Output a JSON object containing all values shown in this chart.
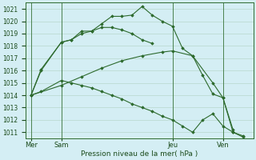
{
  "bg_color": "#d4eef4",
  "grid_color": "#b8d8cc",
  "line_color": "#2d6a2d",
  "marker_color": "#2d6a2d",
  "xlabel": "Pression niveau de la mer( hPa )",
  "ylim": [
    1010.5,
    1021.5
  ],
  "yticks": [
    1011,
    1012,
    1013,
    1014,
    1015,
    1016,
    1017,
    1018,
    1019,
    1020,
    1021
  ],
  "x_tick_labels": [
    "Mer",
    "Sam",
    "Jeu",
    "Ven"
  ],
  "x_tick_positions": [
    0,
    3,
    14,
    19
  ],
  "x_vlines": [
    0,
    3,
    14,
    19
  ],
  "xlim": [
    -0.5,
    22
  ],
  "series": [
    {
      "x": [
        0,
        1,
        3,
        4,
        5,
        6,
        7,
        8,
        9,
        10,
        11,
        12,
        13,
        14,
        15,
        16,
        17,
        18,
        19,
        20
      ],
      "y": [
        1014.0,
        1016.1,
        1018.3,
        1018.5,
        1019.2,
        1019.2,
        1019.8,
        1020.4,
        1020.4,
        1020.5,
        1021.2,
        1020.5,
        1020.0,
        1019.6,
        1017.8,
        1017.2,
        1015.6,
        1014.1,
        1013.8,
        1011.2
      ]
    },
    {
      "x": [
        0,
        3,
        5,
        7,
        9,
        11,
        13,
        14,
        16,
        18,
        19,
        20,
        21
      ],
      "y": [
        1014.0,
        1014.8,
        1015.5,
        1016.2,
        1016.8,
        1017.2,
        1017.5,
        1017.6,
        1017.2,
        1015.0,
        1013.8,
        1011.0,
        1010.6
      ]
    },
    {
      "x": [
        0,
        1,
        3,
        4,
        5,
        6,
        7,
        8,
        9,
        10,
        11,
        12
      ],
      "y": [
        1014.0,
        1016.0,
        1018.3,
        1018.5,
        1019.0,
        1019.2,
        1019.5,
        1019.5,
        1019.3,
        1019.0,
        1018.5,
        1018.2
      ]
    },
    {
      "x": [
        0,
        1,
        3,
        4,
        5,
        6,
        7,
        8,
        9,
        10,
        11,
        12,
        13,
        14,
        15,
        16,
        17,
        18,
        19,
        20,
        21
      ],
      "y": [
        1014.0,
        1014.3,
        1015.2,
        1015.0,
        1014.8,
        1014.6,
        1014.3,
        1014.0,
        1013.7,
        1013.3,
        1013.0,
        1012.7,
        1012.3,
        1012.0,
        1011.5,
        1011.0,
        1012.0,
        1012.5,
        1011.5,
        1011.0,
        1010.7
      ]
    }
  ]
}
